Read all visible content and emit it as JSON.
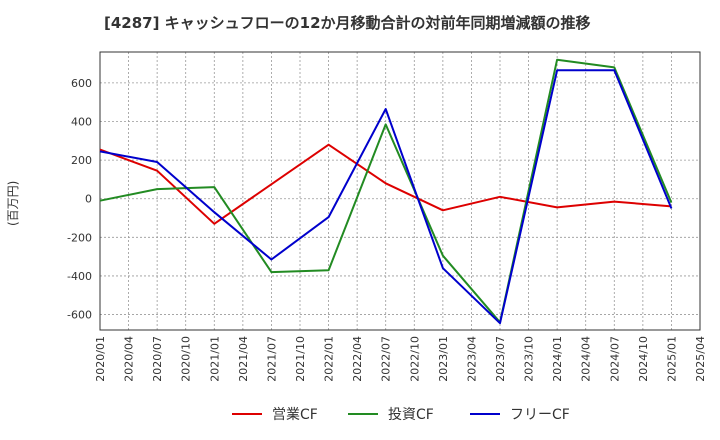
{
  "chart_data": {
    "type": "line",
    "title": "[4287]  キャッシュフローの12か月移動合計の対前年同期増減額の推移",
    "ylabel": "(百万円)",
    "xlabel": "",
    "ylim": [
      -680,
      760
    ],
    "yticks": [
      -600,
      -400,
      -200,
      0,
      200,
      400,
      600
    ],
    "xtick_labels": [
      "2020/01",
      "2020/04",
      "2020/07",
      "2020/10",
      "2021/01",
      "2021/04",
      "2021/07",
      "2021/10",
      "2022/01",
      "2022/04",
      "2022/07",
      "2022/10",
      "2023/01",
      "2023/04",
      "2023/07",
      "2023/10",
      "2024/01",
      "2024/04",
      "2024/07",
      "2024/10",
      "2025/01",
      "2025/04"
    ],
    "grid": true,
    "legend_position": "bottom",
    "series": [
      {
        "name": "営業CF",
        "color": "#dd0000",
        "x": [
          "2020/01",
          "2020/07",
          "2021/01",
          "2022/01",
          "2022/07",
          "2023/01",
          "2023/07",
          "2024/01",
          "2024/07",
          "2025/01"
        ],
        "values": [
          255,
          145,
          -130,
          280,
          80,
          -60,
          10,
          -45,
          -15,
          -40
        ]
      },
      {
        "name": "投資CF",
        "color": "#228b22",
        "x": [
          "2020/01",
          "2020/07",
          "2021/01",
          "2021/07",
          "2022/01",
          "2022/07",
          "2023/01",
          "2023/07",
          "2024/01",
          "2024/07",
          "2025/01"
        ],
        "values": [
          -10,
          50,
          60,
          -380,
          -370,
          385,
          -295,
          -640,
          720,
          680,
          -20
        ]
      },
      {
        "name": "フリーCF",
        "color": "#0000cc",
        "x": [
          "2020/01",
          "2020/07",
          "2021/01",
          "2021/07",
          "2022/01",
          "2022/07",
          "2023/01",
          "2023/07",
          "2024/01",
          "2024/07",
          "2025/01"
        ],
        "values": [
          245,
          190,
          -70,
          -315,
          -95,
          465,
          -360,
          -645,
          665,
          665,
          -50
        ]
      }
    ]
  }
}
